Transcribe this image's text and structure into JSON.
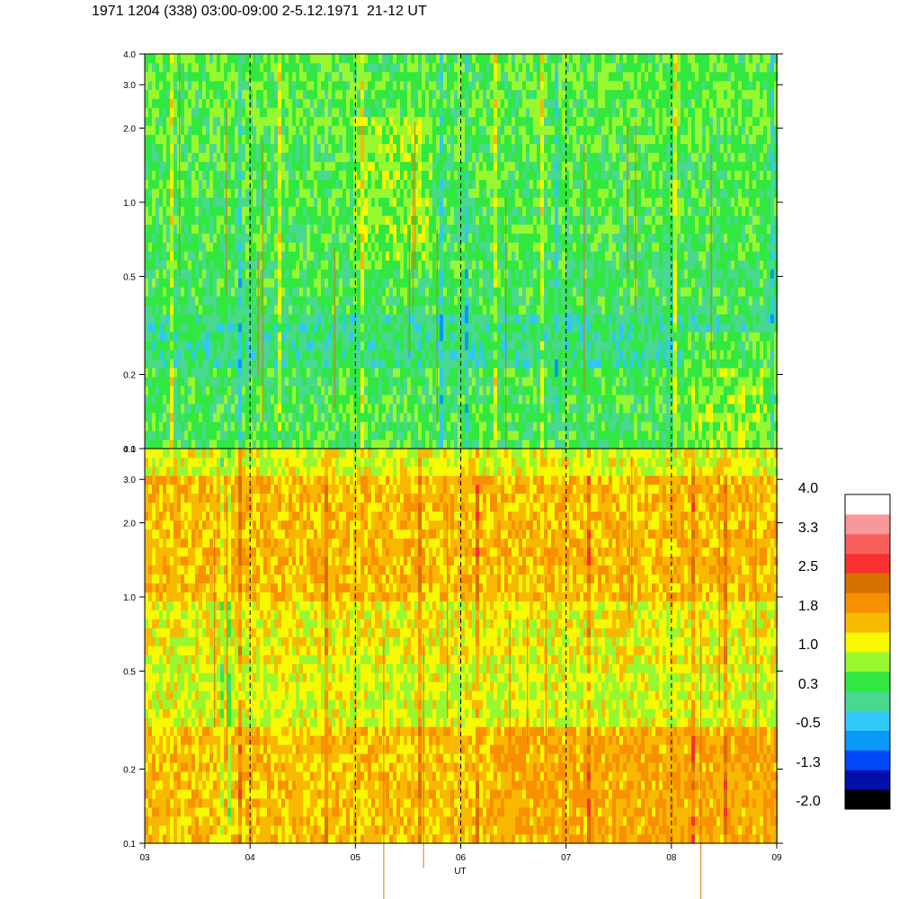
{
  "title": "1971 1204 (338) 03:00-09:00 2-5.12.1971  21-12 UT",
  "colors": {
    "scale": [
      "#000000",
      "#0010a8",
      "#0048f8",
      "#0898f8",
      "#30c8f8",
      "#48d890",
      "#30e840",
      "#98f830",
      "#f8f800",
      "#f8b800",
      "#f89000",
      "#d87000",
      "#f83030",
      "#f86060",
      "#f89898",
      "#ffffff"
    ]
  },
  "chart_data": [
    {
      "type": "heatmap",
      "name": "upper-panel",
      "xlabel": "",
      "ylabel": "",
      "x_range": [
        "03:00",
        "09:00"
      ],
      "ylim": [
        0.1,
        4.0
      ],
      "y_scale": "log",
      "y_tick_labels": [
        "0.1",
        "0.2",
        "0.5",
        "1.0",
        "2.0",
        "3.0",
        "4.0"
      ],
      "dominant_levels": "green/cyan (-0.5 to 1.0), with yellow streaks"
    },
    {
      "type": "heatmap",
      "name": "lower-panel",
      "xlabel": "UT",
      "ylabel": "",
      "x_tick_labels": [
        "03",
        "04",
        "05",
        "06",
        "07",
        "08",
        "09"
      ],
      "x_range": [
        "03:00",
        "09:00"
      ],
      "ylim": [
        0.1,
        4.0
      ],
      "y_scale": "log",
      "y_tick_labels": [
        "0.1",
        "0.2",
        "0.5",
        "1.0",
        "2.0",
        "3.0",
        "4.0"
      ],
      "dominant_levels": "orange/yellow (1.0 to 2.2), with green streaks"
    }
  ],
  "colorbar": {
    "labels": [
      "4.0",
      "3.3",
      "2.5",
      "1.8",
      "1.0",
      "0.3",
      "-0.5",
      "-1.3",
      "-2.0"
    ]
  }
}
